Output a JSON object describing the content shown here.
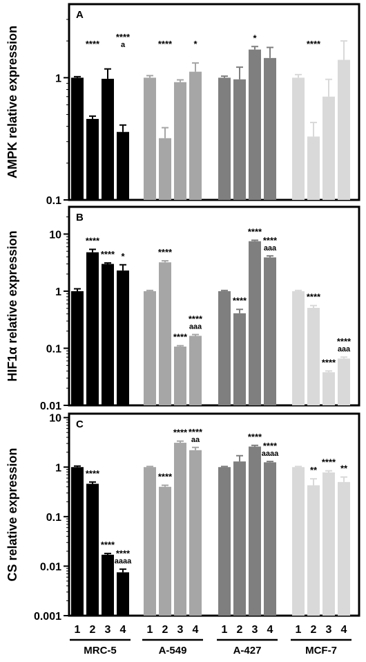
{
  "chart_data": [
    {
      "type": "bar",
      "panel_label": "A",
      "ylabel": "AMPK relative expression",
      "yscale": "log",
      "ylim": [
        0.1,
        4
      ],
      "yticks": [
        "0.1",
        "1"
      ],
      "groups": [
        {
          "name": "MRC-5",
          "color": "#000000",
          "bars": [
            {
              "x": "1",
              "value": 1.0,
              "err": 0.02,
              "sig": [
                ""
              ]
            },
            {
              "x": "2",
              "value": 0.46,
              "err": 0.025,
              "sig": [
                "****"
              ]
            },
            {
              "x": "3",
              "value": 0.98,
              "err": 0.2,
              "sig": [
                ""
              ]
            },
            {
              "x": "4",
              "value": 0.36,
              "err": 0.05,
              "sig": [
                "****",
                "a"
              ]
            }
          ]
        },
        {
          "name": "A-549",
          "color": "#a6a6a6",
          "bars": [
            {
              "x": "1",
              "value": 1.0,
              "err": 0.04,
              "sig": [
                ""
              ]
            },
            {
              "x": "2",
              "value": 0.32,
              "err": 0.07,
              "sig": [
                "****"
              ]
            },
            {
              "x": "3",
              "value": 0.92,
              "err": 0.04,
              "sig": [
                ""
              ]
            },
            {
              "x": "4",
              "value": 1.12,
              "err": 0.2,
              "sig": [
                "*"
              ]
            }
          ]
        },
        {
          "name": "A-427",
          "color": "#7f7f7f",
          "bars": [
            {
              "x": "1",
              "value": 1.0,
              "err": 0.03,
              "sig": [
                ""
              ]
            },
            {
              "x": "2",
              "value": 0.97,
              "err": 0.25,
              "sig": [
                ""
              ]
            },
            {
              "x": "3",
              "value": 1.7,
              "err": 0.1,
              "sig": [
                "*"
              ]
            },
            {
              "x": "4",
              "value": 1.45,
              "err": 0.32,
              "sig": [
                ""
              ]
            }
          ]
        },
        {
          "name": "MCF-7",
          "color": "#d9d9d9",
          "bars": [
            {
              "x": "1",
              "value": 1.0,
              "err": 0.06,
              "sig": [
                ""
              ]
            },
            {
              "x": "2",
              "value": 0.33,
              "err": 0.1,
              "sig": [
                "****"
              ]
            },
            {
              "x": "3",
              "value": 0.7,
              "err": 0.27,
              "sig": [
                ""
              ]
            },
            {
              "x": "4",
              "value": 1.4,
              "err": 0.6,
              "sig": [
                ""
              ]
            }
          ]
        }
      ]
    },
    {
      "type": "bar",
      "panel_label": "B",
      "ylabel": "HIF1α relative expression",
      "yscale": "log",
      "ylim": [
        0.01,
        30
      ],
      "yticks": [
        "0.01",
        "0.1",
        "1",
        "10"
      ],
      "groups": [
        {
          "name": "MRC-5",
          "color": "#000000",
          "bars": [
            {
              "x": "1",
              "value": 1.0,
              "err": 0.1,
              "sig": [
                ""
              ]
            },
            {
              "x": "2",
              "value": 4.8,
              "err": 0.6,
              "sig": [
                "****"
              ]
            },
            {
              "x": "3",
              "value": 3.0,
              "err": 0.12,
              "sig": [
                "****"
              ]
            },
            {
              "x": "4",
              "value": 2.3,
              "err": 0.6,
              "sig": [
                "*"
              ]
            }
          ]
        },
        {
          "name": "A-549",
          "color": "#a6a6a6",
          "bars": [
            {
              "x": "1",
              "value": 1.0,
              "err": 0.03,
              "sig": [
                ""
              ]
            },
            {
              "x": "2",
              "value": 3.2,
              "err": 0.2,
              "sig": [
                "****"
              ]
            },
            {
              "x": "3",
              "value": 0.107,
              "err": 0.004,
              "sig": [
                "****"
              ]
            },
            {
              "x": "4",
              "value": 0.165,
              "err": 0.009,
              "sig": [
                "****",
                "aaa"
              ]
            }
          ]
        },
        {
          "name": "A-427",
          "color": "#7f7f7f",
          "bars": [
            {
              "x": "1",
              "value": 1.0,
              "err": 0.03,
              "sig": [
                ""
              ]
            },
            {
              "x": "2",
              "value": 0.41,
              "err": 0.07,
              "sig": [
                "****"
              ]
            },
            {
              "x": "3",
              "value": 7.5,
              "err": 0.3,
              "sig": [
                "****"
              ]
            },
            {
              "x": "4",
              "value": 3.9,
              "err": 0.25,
              "sig": [
                "****",
                "aaa"
              ]
            }
          ]
        },
        {
          "name": "MCF-7",
          "color": "#d9d9d9",
          "bars": [
            {
              "x": "1",
              "value": 1.0,
              "err": 0.03,
              "sig": [
                ""
              ]
            },
            {
              "x": "2",
              "value": 0.51,
              "err": 0.05,
              "sig": [
                "****"
              ]
            },
            {
              "x": "3",
              "value": 0.038,
              "err": 0.002,
              "sig": [
                "****"
              ]
            },
            {
              "x": "4",
              "value": 0.066,
              "err": 0.004,
              "sig": [
                "****",
                "aaa"
              ]
            }
          ]
        }
      ]
    },
    {
      "type": "bar",
      "panel_label": "C",
      "ylabel": "CS relative expression",
      "yscale": "log",
      "ylim": [
        0.001,
        12
      ],
      "yticks": [
        "0.001",
        "0.01",
        "0.1",
        "1",
        "10"
      ],
      "xlabel_groups": [
        "MRC-5",
        "A-549",
        "A-427",
        "MCF-7"
      ],
      "xtick_labels": [
        "1",
        "2",
        "3",
        "4"
      ],
      "groups": [
        {
          "name": "MRC-5",
          "color": "#000000",
          "bars": [
            {
              "x": "1",
              "value": 1.0,
              "err": 0.05,
              "sig": [
                ""
              ]
            },
            {
              "x": "2",
              "value": 0.46,
              "err": 0.04,
              "sig": [
                "****"
              ]
            },
            {
              "x": "3",
              "value": 0.017,
              "err": 0.001,
              "sig": [
                "****"
              ]
            },
            {
              "x": "4",
              "value": 0.0075,
              "err": 0.0012,
              "sig": [
                "****",
                "aaaa"
              ]
            }
          ]
        },
        {
          "name": "A-549",
          "color": "#a6a6a6",
          "bars": [
            {
              "x": "1",
              "value": 1.0,
              "err": 0.03,
              "sig": [
                ""
              ]
            },
            {
              "x": "2",
              "value": 0.4,
              "err": 0.03,
              "sig": [
                "****"
              ]
            },
            {
              "x": "3",
              "value": 3.1,
              "err": 0.25,
              "sig": [
                "****"
              ]
            },
            {
              "x": "4",
              "value": 2.2,
              "err": 0.3,
              "sig": [
                "****",
                "aa"
              ]
            }
          ]
        },
        {
          "name": "A-427",
          "color": "#7f7f7f",
          "bars": [
            {
              "x": "1",
              "value": 1.0,
              "err": 0.03,
              "sig": [
                ""
              ]
            },
            {
              "x": "2",
              "value": 1.3,
              "err": 0.4,
              "sig": [
                ""
              ]
            },
            {
              "x": "3",
              "value": 2.6,
              "err": 0.15,
              "sig": [
                "****"
              ]
            },
            {
              "x": "4",
              "value": 1.25,
              "err": 0.05,
              "sig": [
                "****",
                "aaaa"
              ]
            }
          ]
        },
        {
          "name": "MCF-7",
          "color": "#d9d9d9",
          "bars": [
            {
              "x": "1",
              "value": 1.0,
              "err": 0.03,
              "sig": [
                ""
              ]
            },
            {
              "x": "2",
              "value": 0.43,
              "err": 0.15,
              "sig": [
                "**"
              ]
            },
            {
              "x": "3",
              "value": 0.78,
              "err": 0.06,
              "sig": [
                "****"
              ]
            },
            {
              "x": "4",
              "value": 0.5,
              "err": 0.13,
              "sig": [
                "**"
              ]
            }
          ]
        }
      ]
    }
  ]
}
